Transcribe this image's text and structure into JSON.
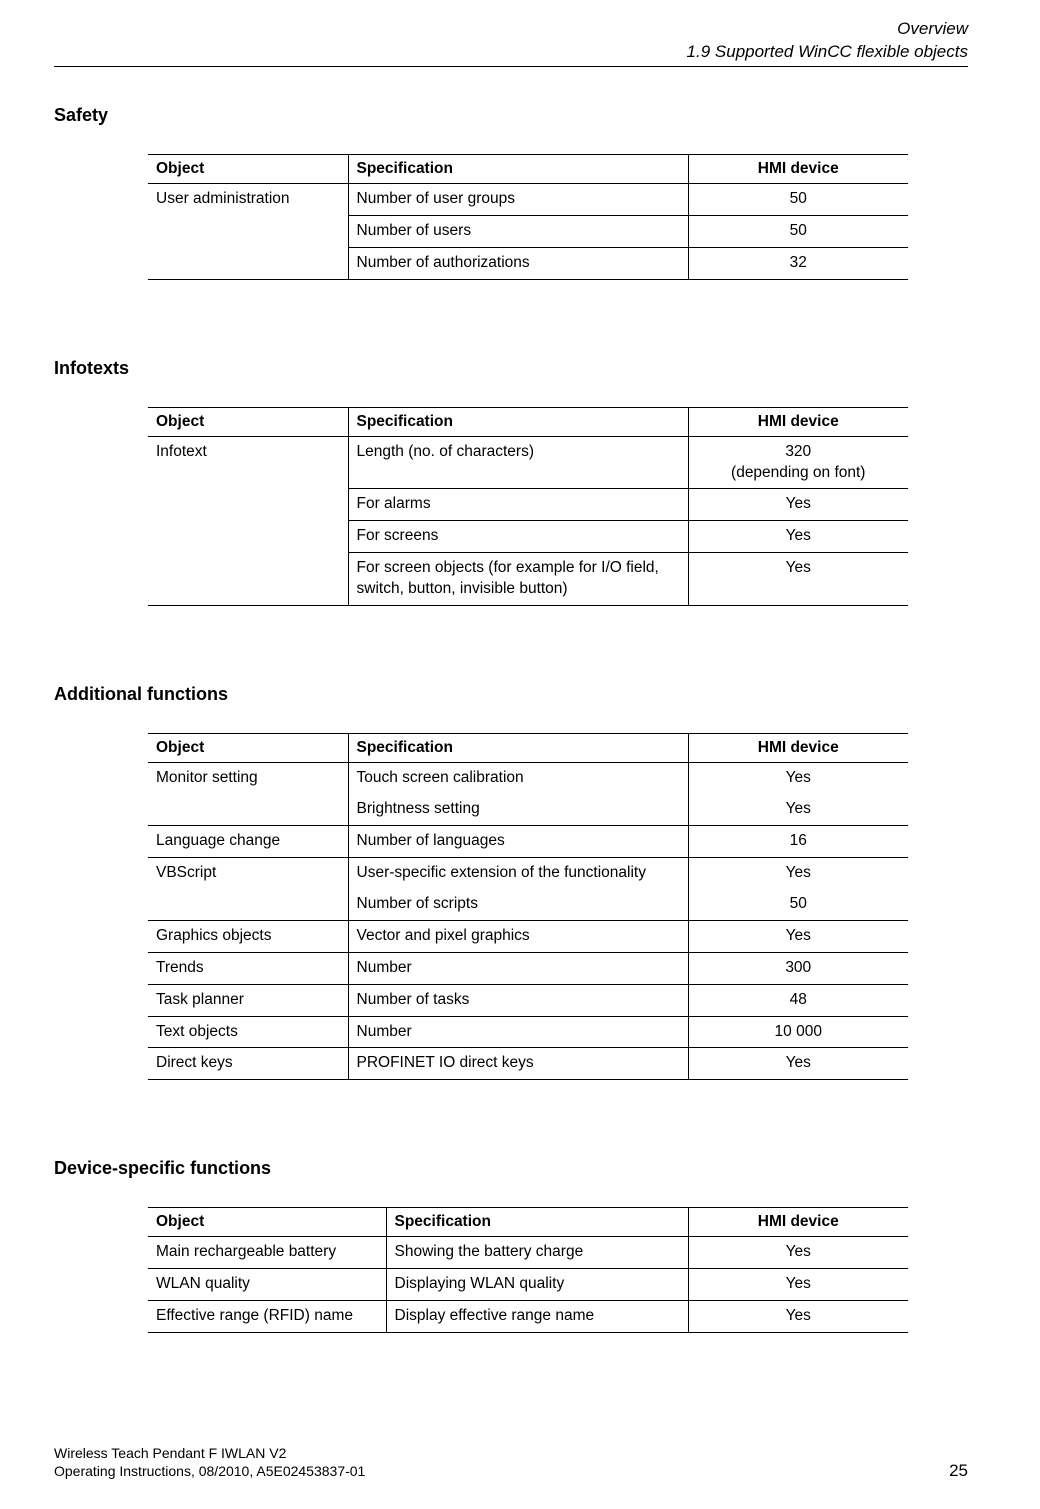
{
  "header": {
    "chapter": "Overview",
    "section": "1.9 Supported WinCC flexible objects"
  },
  "columns": {
    "object": "Object",
    "specification": "Specification",
    "hmi": "HMI device"
  },
  "safety": {
    "title": "Safety",
    "rows": [
      {
        "object": "User administration",
        "spec": "Number of user groups",
        "val": "50"
      },
      {
        "object": "",
        "spec": "Number of users",
        "val": "50"
      },
      {
        "object": "",
        "spec": "Number of authorizations",
        "val": "32"
      }
    ]
  },
  "infotexts": {
    "title": "Infotexts",
    "rows": [
      {
        "object": "Infotext",
        "spec": "Length (no. of characters)",
        "val": "320\n(depending on font)"
      },
      {
        "object": "",
        "spec": "For alarms",
        "val": "Yes"
      },
      {
        "object": "",
        "spec": "For screens",
        "val": "Yes"
      },
      {
        "object": "",
        "spec": "For screen objects (for example for I/O field, switch, button, invisible button)",
        "val": "Yes"
      }
    ]
  },
  "additional": {
    "title": "Additional functions",
    "rows": [
      {
        "object": "Monitor setting",
        "spec": "Touch screen calibration",
        "val": "Yes",
        "group_start": true
      },
      {
        "object": "",
        "spec": "Brightness setting",
        "val": "Yes",
        "group_end": true
      },
      {
        "object": "Language change",
        "spec": "Number of languages",
        "val": "16",
        "single": true
      },
      {
        "object": "VBScript",
        "spec": "User-specific extension of the functionality",
        "val": "Yes",
        "group_start": true
      },
      {
        "object": "",
        "spec": "Number of scripts",
        "val": "50",
        "group_end": true
      },
      {
        "object": "Graphics objects",
        "spec": "Vector and pixel graphics",
        "val": "Yes",
        "single": true
      },
      {
        "object": "Trends",
        "spec": "Number",
        "val": "300",
        "single": true
      },
      {
        "object": "Task planner",
        "spec": "Number of tasks",
        "val": "48",
        "single": true
      },
      {
        "object": "Text objects",
        "spec": "Number",
        "val": "10 000",
        "single": true
      },
      {
        "object": "Direct keys",
        "spec": "PROFINET IO direct keys",
        "val": "Yes",
        "single": true
      }
    ]
  },
  "device": {
    "title": "Device-specific functions",
    "rows": [
      {
        "object": "Main rechargeable battery",
        "spec": "Showing the battery charge",
        "val": "Yes"
      },
      {
        "object": "WLAN quality",
        "spec": "Displaying WLAN quality",
        "val": "Yes"
      },
      {
        "object": "Effective range (RFID) name",
        "spec": "Display effective range name",
        "val": "Yes"
      }
    ]
  },
  "footer": {
    "line1": "Wireless Teach Pendant F IWLAN V2",
    "line2": "Operating Instructions, 08/2010, A5E02453837-01",
    "page": "25"
  }
}
